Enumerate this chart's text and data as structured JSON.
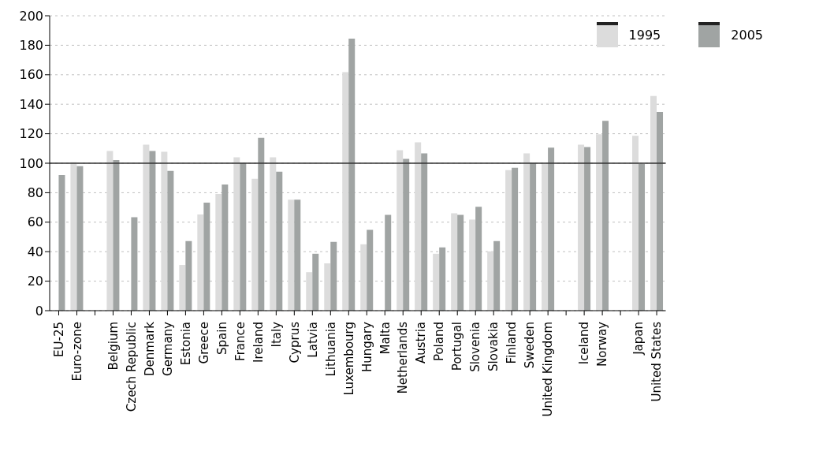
{
  "chart_data": {
    "type": "bar",
    "categories": [
      "EU-25",
      "Euro-zone",
      null,
      "Belgium",
      "Czech Republic",
      "Denmark",
      "Germany",
      "Estonia",
      "Greece",
      "Spain",
      "France",
      "Ireland",
      "Italy",
      "Cyprus",
      "Latvia",
      "Lithuania",
      "Luxembourg",
      "Hungary",
      "Malta",
      "Netherlands",
      "Austria",
      "Poland",
      "Portugal",
      "Slovenia",
      "Slovakia",
      "Finland",
      "Sweden",
      "United Kingdom",
      null,
      "Iceland",
      "Norway",
      null,
      "Japan",
      "United States"
    ],
    "series": [
      {
        "name": "1995",
        "color": "#dcdcdc",
        "values": [
          null,
          100.7,
          null,
          108.3,
          null,
          112.6,
          107.7,
          31,
          65.2,
          79.1,
          104,
          89.4,
          104,
          75.3,
          26.1,
          32.1,
          161.8,
          45,
          null,
          108.8,
          114.2,
          38.6,
          66.1,
          61.8,
          40.2,
          95.3,
          106.7,
          99.6,
          null,
          112.6,
          119.6,
          null,
          118.6,
          145.6
        ]
      },
      {
        "name": "2005",
        "color": "#a0a4a3",
        "values": [
          92,
          98,
          null,
          102.2,
          63.4,
          108.3,
          94.8,
          47.2,
          73.2,
          85.6,
          100.2,
          117.3,
          94.2,
          75.3,
          38.6,
          46.7,
          184.5,
          54.8,
          65,
          102.9,
          106.7,
          42.9,
          65,
          70.5,
          47.2,
          96.9,
          100.2,
          110.5,
          null,
          111,
          128.8,
          null,
          99.6,
          134.8
        ]
      }
    ],
    "ylim": [
      0,
      200
    ],
    "yticks": [
      0,
      20,
      40,
      60,
      80,
      100,
      120,
      140,
      160,
      180,
      200
    ],
    "grid": "y",
    "legend": "top right",
    "ref_lines": [
      {
        "axis": "y",
        "value": 100,
        "color": "#333333"
      }
    ]
  }
}
